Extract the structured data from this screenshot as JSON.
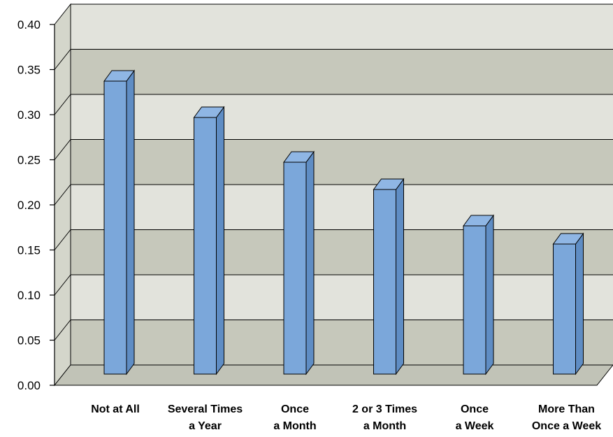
{
  "chart_data": {
    "type": "bar",
    "three_d": true,
    "categories": [
      [
        "Not at All"
      ],
      [
        "Several Times",
        "a Year"
      ],
      [
        "Once",
        "a Month"
      ],
      [
        "2 or 3 Times",
        "a Month"
      ],
      [
        "Once",
        "a Week"
      ],
      [
        "More Than",
        "Once a Week"
      ]
    ],
    "values": [
      0.33,
      0.29,
      0.24,
      0.21,
      0.17,
      0.15
    ],
    "ylim": [
      0,
      0.4
    ],
    "yticks": [
      "0.00",
      "0.05",
      "0.10",
      "0.15",
      "0.20",
      "0.25",
      "0.30",
      "0.35",
      "0.40"
    ],
    "title": "",
    "xlabel": "",
    "ylabel": "",
    "grid": true,
    "legend": "none",
    "colors": {
      "bar_front": "#7ba7da",
      "bar_side": "#5f8dc4",
      "bar_top": "#8fb6e4",
      "band_dark": "#c6c8bb",
      "band_light": "#e2e3dc",
      "side_wall": "#d4d6cb",
      "floor": "#c1c3b7",
      "outline": "#000000"
    }
  }
}
